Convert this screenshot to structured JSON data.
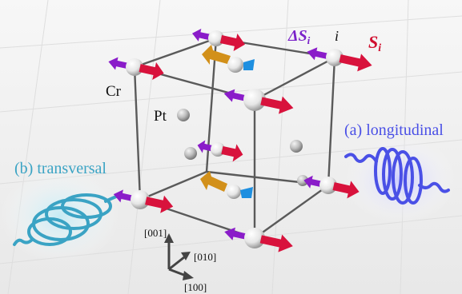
{
  "labels": {
    "delta_s": "ΔS",
    "delta_s_sub": "i",
    "site_i": "i",
    "s": "S",
    "s_sub": "i",
    "cr": "Cr",
    "pt": "Pt",
    "longitudinal": "(a) longitudinal",
    "transversal": "(b) transversal",
    "axis_001": "[001]",
    "axis_010": "[010]",
    "axis_100": "[100]"
  },
  "colors": {
    "floor": "#efefef",
    "cube_edge": "#555555",
    "spin_s": "#d8123c",
    "spin_delta": "#8a1cc9",
    "pt_spin_orange": "#d2901a",
    "pt_spin_blue": "#1e8fe0",
    "longitudinal": "#4a50e6",
    "transversal": "#3aa3c4",
    "label_delta": "#7a22c9",
    "label_s": "#d10f2f"
  },
  "icons": {
    "atom": "white-sphere",
    "pt_atom": "grey-sphere",
    "spin_vector": "arrow",
    "wave": "helix"
  }
}
